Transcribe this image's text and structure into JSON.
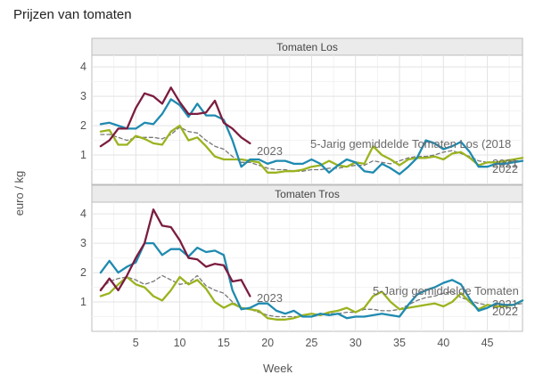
{
  "chart_data": {
    "type": "line",
    "title": "Prijzen van tomaten",
    "xlabel": "Week",
    "ylabel": "euro / kg",
    "xlim": [
      0,
      49
    ],
    "ylim": [
      0,
      4.4
    ],
    "x_ticks": [
      5,
      10,
      15,
      20,
      25,
      30,
      35,
      40,
      45
    ],
    "y_ticks": [
      1,
      2,
      3,
      4
    ],
    "grid": true,
    "colors": {
      "2023": "#7b1c3f",
      "2022": "#1f8ab0",
      "2021": "#9bb31f",
      "avg": "#777777"
    },
    "panels": [
      {
        "name": "Tomaten Los",
        "series": [
          {
            "name": "2023",
            "x": [
              1,
              2,
              3,
              4,
              5,
              6,
              7,
              8,
              9,
              10,
              11,
              12,
              13,
              14,
              15,
              16,
              17,
              18
            ],
            "values": [
              1.3,
              1.5,
              1.9,
              1.9,
              2.6,
              3.1,
              3.0,
              2.75,
              3.3,
              2.8,
              2.4,
              2.4,
              2.45,
              2.85,
              2.1,
              1.9,
              1.6,
              1.4
            ]
          },
          {
            "name": "2022",
            "x": [
              1,
              2,
              3,
              4,
              5,
              6,
              7,
              8,
              9,
              10,
              11,
              12,
              13,
              14,
              15,
              16,
              17,
              18,
              19,
              20,
              21,
              22,
              23,
              24,
              25,
              26,
              27,
              28,
              29,
              30,
              31,
              32,
              33,
              34,
              35,
              36,
              37,
              38,
              39,
              40,
              41,
              42,
              43,
              44,
              45,
              46,
              47,
              48,
              49
            ],
            "values": [
              2.05,
              2.1,
              2.0,
              1.9,
              1.9,
              2.1,
              2.05,
              2.4,
              2.9,
              2.7,
              2.3,
              2.75,
              2.35,
              2.35,
              2.2,
              1.5,
              0.6,
              0.85,
              0.85,
              0.7,
              0.8,
              0.8,
              0.7,
              0.7,
              0.85,
              0.7,
              0.4,
              0.65,
              0.85,
              0.75,
              0.45,
              0.4,
              0.7,
              0.55,
              0.35,
              0.6,
              0.9,
              1.5,
              1.4,
              1.2,
              1.3,
              1.45,
              1.1,
              0.6,
              0.6,
              0.7,
              0.7,
              0.75,
              0.8
            ]
          },
          {
            "name": "2021",
            "x": [
              1,
              2,
              3,
              4,
              5,
              6,
              7,
              8,
              9,
              10,
              11,
              12,
              13,
              14,
              15,
              16,
              17,
              18,
              19,
              20,
              21,
              22,
              23,
              24,
              25,
              26,
              27,
              28,
              29,
              30,
              31,
              32,
              33,
              34,
              35,
              36,
              37,
              38,
              39,
              40,
              41,
              42,
              43,
              44,
              45,
              46,
              47,
              48,
              49
            ],
            "values": [
              1.8,
              1.85,
              1.35,
              1.35,
              1.65,
              1.55,
              1.4,
              1.35,
              1.8,
              2.0,
              1.5,
              1.6,
              1.3,
              0.95,
              0.85,
              0.85,
              0.85,
              0.8,
              0.75,
              0.4,
              0.4,
              0.45,
              0.45,
              0.5,
              0.6,
              0.65,
              0.8,
              0.65,
              0.6,
              0.75,
              0.7,
              1.3,
              1.0,
              0.85,
              0.65,
              0.85,
              0.9,
              0.9,
              0.95,
              0.85,
              1.05,
              1.1,
              0.9,
              0.65,
              0.75,
              0.75,
              0.8,
              0.85,
              0.9
            ]
          },
          {
            "name": "avg",
            "label": "5-Jarig gemiddelde Tomaten Los (2018",
            "dashed": true,
            "x": [
              1,
              2,
              3,
              4,
              5,
              6,
              7,
              8,
              9,
              10,
              11,
              12,
              13,
              14,
              15,
              16,
              17,
              18,
              19,
              20,
              21,
              22,
              23,
              24,
              25,
              26,
              27,
              28,
              29,
              30,
              31,
              32,
              33,
              34,
              35,
              36,
              37,
              38,
              39,
              40,
              41,
              42,
              43,
              44,
              45,
              46,
              47,
              48,
              49
            ],
            "values": [
              1.7,
              1.7,
              1.6,
              1.5,
              1.6,
              1.6,
              1.6,
              1.55,
              1.7,
              1.95,
              1.8,
              1.75,
              1.5,
              1.3,
              1.2,
              0.95,
              0.75,
              0.75,
              0.65,
              0.55,
              0.5,
              0.5,
              0.45,
              0.45,
              0.5,
              0.5,
              0.55,
              0.55,
              0.6,
              0.65,
              0.65,
              0.8,
              0.75,
              0.7,
              0.8,
              0.9,
              0.95,
              0.95,
              1.0,
              1.1,
              1.15,
              1.05,
              0.95,
              0.8,
              0.75,
              0.75,
              0.75,
              0.8,
              0.8
            ]
          }
        ]
      },
      {
        "name": "Tomaten Tros",
        "series": [
          {
            "name": "2023",
            "x": [
              1,
              2,
              3,
              4,
              5,
              6,
              7,
              8,
              9,
              10,
              11,
              12,
              13,
              14,
              15,
              16,
              17,
              18
            ],
            "values": [
              1.4,
              1.8,
              1.4,
              1.9,
              2.5,
              3.0,
              4.15,
              3.6,
              3.55,
              3.1,
              2.5,
              2.45,
              2.2,
              2.3,
              2.25,
              1.7,
              1.75,
              1.2
            ]
          },
          {
            "name": "2022",
            "x": [
              1,
              2,
              3,
              4,
              5,
              6,
              7,
              8,
              9,
              10,
              11,
              12,
              13,
              14,
              15,
              16,
              17,
              18,
              19,
              20,
              21,
              22,
              23,
              24,
              25,
              26,
              27,
              28,
              29,
              30,
              31,
              32,
              33,
              34,
              35,
              36,
              37,
              38,
              39,
              40,
              41,
              42,
              43,
              44,
              45,
              46,
              47,
              48,
              49
            ],
            "values": [
              2.0,
              2.4,
              2.0,
              2.2,
              2.35,
              3.0,
              3.0,
              2.6,
              2.8,
              2.8,
              2.55,
              2.85,
              2.7,
              2.75,
              2.6,
              1.4,
              0.75,
              0.8,
              0.95,
              0.95,
              0.7,
              0.6,
              0.7,
              0.5,
              0.5,
              0.6,
              0.55,
              0.6,
              0.45,
              0.5,
              0.5,
              0.55,
              0.6,
              0.55,
              0.5,
              0.9,
              1.25,
              1.4,
              1.5,
              1.65,
              1.75,
              1.6,
              1.1,
              0.7,
              0.8,
              0.95,
              0.9,
              0.9,
              1.05
            ]
          },
          {
            "name": "2021",
            "x": [
              1,
              2,
              3,
              4,
              5,
              6,
              7,
              8,
              9,
              10,
              11,
              12,
              13,
              14,
              15,
              16,
              17,
              18,
              19,
              20,
              21,
              22,
              23,
              24,
              25,
              26,
              27,
              28,
              29,
              30,
              31,
              32,
              33,
              34,
              35,
              36,
              37,
              38,
              39,
              40,
              41,
              42,
              43,
              44,
              45,
              46,
              47,
              48,
              49
            ],
            "values": [
              1.2,
              1.3,
              1.6,
              1.85,
              1.6,
              1.5,
              1.2,
              1.05,
              1.4,
              1.85,
              1.6,
              1.75,
              1.45,
              1.0,
              0.8,
              0.95,
              0.8,
              0.75,
              0.7,
              0.45,
              0.4,
              0.4,
              0.45,
              0.55,
              0.6,
              0.55,
              0.65,
              0.7,
              0.8,
              0.65,
              0.8,
              1.2,
              1.35,
              1.0,
              0.75,
              0.8,
              0.85,
              0.9,
              0.95,
              0.85,
              1.0,
              1.3,
              1.0,
              0.75,
              0.9,
              0.85,
              0.85,
              0.9,
              1.05
            ]
          },
          {
            "name": "avg",
            "label": "5-Jarig gemiddelde Tomaten",
            "dashed": true,
            "x": [
              1,
              2,
              3,
              4,
              5,
              6,
              7,
              8,
              9,
              10,
              11,
              12,
              13,
              14,
              15,
              16,
              17,
              18,
              19,
              20,
              21,
              22,
              23,
              24,
              25,
              26,
              27,
              28,
              29,
              30,
              31,
              32,
              33,
              34,
              35,
              36,
              37,
              38,
              39,
              40,
              41,
              42,
              43,
              44,
              45,
              46,
              47,
              48,
              49
            ],
            "values": [
              1.45,
              1.7,
              1.8,
              1.85,
              1.75,
              1.6,
              1.7,
              1.9,
              1.75,
              1.6,
              1.65,
              1.9,
              1.55,
              1.4,
              1.3,
              1.0,
              0.8,
              0.75,
              0.65,
              0.55,
              0.5,
              0.5,
              0.5,
              0.5,
              0.5,
              0.55,
              0.6,
              0.6,
              0.65,
              0.65,
              0.75,
              0.75,
              0.7,
              0.7,
              0.75,
              0.9,
              1.05,
              1.15,
              1.2,
              1.3,
              1.35,
              1.15,
              1.05,
              0.95,
              0.9,
              0.9,
              0.9,
              0.9,
              0.95
            ]
          }
        ]
      }
    ]
  }
}
